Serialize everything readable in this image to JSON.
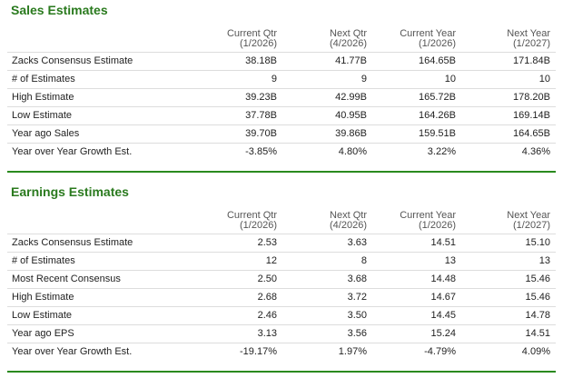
{
  "sections": [
    {
      "title": "Sales Estimates",
      "headers": [
        {
          "title": "Current Qtr",
          "period": "(1/2026)"
        },
        {
          "title": "Next Qtr",
          "period": "(4/2026)"
        },
        {
          "title": "Current Year",
          "period": "(1/2026)"
        },
        {
          "title": "Next Year",
          "period": "(1/2027)"
        }
      ],
      "rows": [
        {
          "label": "Zacks Consensus Estimate",
          "values": [
            "38.18B",
            "41.77B",
            "164.65B",
            "171.84B"
          ]
        },
        {
          "label": "# of Estimates",
          "values": [
            "9",
            "9",
            "10",
            "10"
          ]
        },
        {
          "label": "High Estimate",
          "values": [
            "39.23B",
            "42.99B",
            "165.72B",
            "178.20B"
          ]
        },
        {
          "label": "Low Estimate",
          "values": [
            "37.78B",
            "40.95B",
            "164.26B",
            "169.14B"
          ]
        },
        {
          "label": "Year ago Sales",
          "values": [
            "39.70B",
            "39.86B",
            "159.51B",
            "164.65B"
          ]
        },
        {
          "label": "Year over Year Growth Est.",
          "values": [
            "-3.85%",
            "4.80%",
            "3.22%",
            "4.36%"
          ]
        }
      ]
    },
    {
      "title": "Earnings Estimates",
      "headers": [
        {
          "title": "Current Qtr",
          "period": "(1/2026)"
        },
        {
          "title": "Next Qtr",
          "period": "(4/2026)"
        },
        {
          "title": "Current Year",
          "period": "(1/2026)"
        },
        {
          "title": "Next Year",
          "period": "(1/2027)"
        }
      ],
      "rows": [
        {
          "label": "Zacks Consensus Estimate",
          "values": [
            "2.53",
            "3.63",
            "14.51",
            "15.10"
          ]
        },
        {
          "label": "# of Estimates",
          "values": [
            "12",
            "8",
            "13",
            "13"
          ]
        },
        {
          "label": "Most Recent Consensus",
          "values": [
            "2.50",
            "3.68",
            "14.48",
            "15.46"
          ]
        },
        {
          "label": "High Estimate",
          "values": [
            "2.68",
            "3.72",
            "14.67",
            "15.46"
          ]
        },
        {
          "label": "Low Estimate",
          "values": [
            "2.46",
            "3.50",
            "14.45",
            "14.78"
          ]
        },
        {
          "label": "Year ago EPS",
          "values": [
            "3.13",
            "3.56",
            "15.24",
            "14.51"
          ]
        },
        {
          "label": "Year over Year Growth Est.",
          "values": [
            "-19.17%",
            "1.97%",
            "-4.79%",
            "4.09%"
          ]
        }
      ]
    }
  ]
}
